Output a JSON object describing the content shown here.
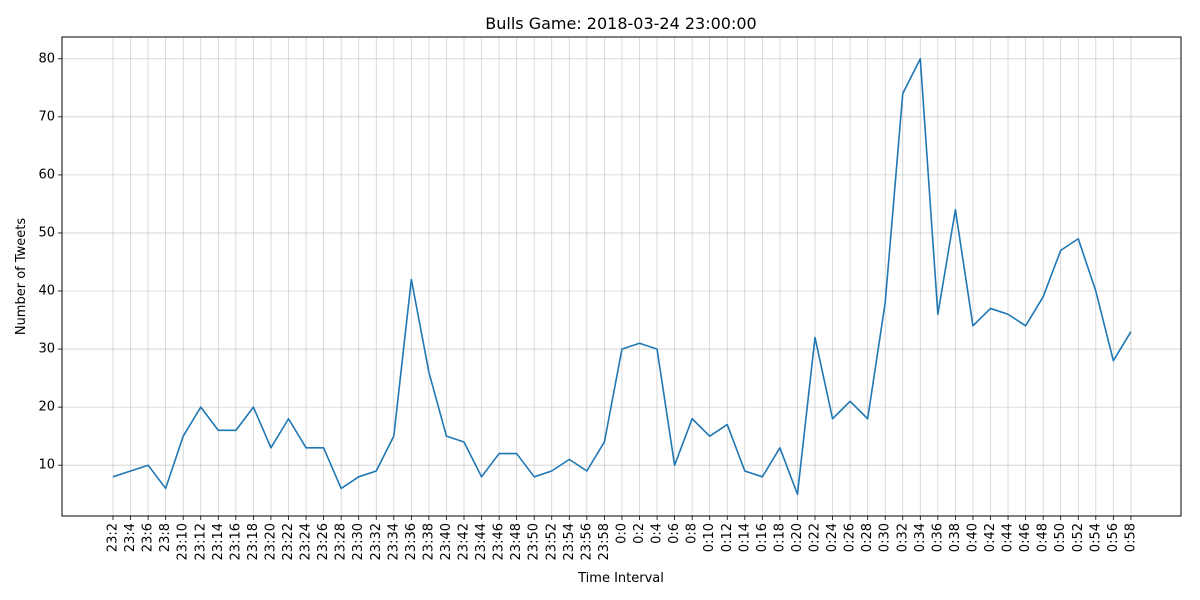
{
  "chart_data": {
    "type": "line",
    "title": "Bulls Game: 2018-03-24 23:00:00",
    "xlabel": "Time Interval",
    "ylabel": "Number of Tweets",
    "ylim": [
      1.25,
      83.75
    ],
    "yticks": [
      10,
      20,
      30,
      40,
      50,
      60,
      70,
      80
    ],
    "grid": true,
    "legend": "none",
    "color": "#1f77b4",
    "categories": [
      "23:2",
      "23:4",
      "23:6",
      "23:8",
      "23:10",
      "23:12",
      "23:14",
      "23:16",
      "23:18",
      "23:20",
      "23:22",
      "23:24",
      "23:26",
      "23:28",
      "23:30",
      "23:32",
      "23:34",
      "23:36",
      "23:38",
      "23:40",
      "23:42",
      "23:44",
      "23:46",
      "23:48",
      "23:50",
      "23:52",
      "23:54",
      "23:56",
      "23:58",
      "0:0",
      "0:2",
      "0:4",
      "0:6",
      "0:8",
      "0:10",
      "0:12",
      "0:14",
      "0:16",
      "0:18",
      "0:20",
      "0:22",
      "0:24",
      "0:26",
      "0:28",
      "0:30",
      "0:32",
      "0:34",
      "0:36",
      "0:38",
      "0:40",
      "0:42",
      "0:44",
      "0:46",
      "0:48",
      "0:50",
      "0:52",
      "0:54",
      "0:56",
      "0:58"
    ],
    "values": [
      8,
      9,
      10,
      6,
      15,
      20,
      16,
      16,
      20,
      13,
      18,
      13,
      13,
      6,
      8,
      9,
      15,
      42,
      26,
      15,
      14,
      8,
      12,
      12,
      8,
      9,
      11,
      9,
      14,
      30,
      31,
      30,
      10,
      18,
      15,
      17,
      9,
      8,
      13,
      5,
      32,
      18,
      21,
      18,
      38,
      74,
      80,
      36,
      54,
      34,
      37,
      36,
      34,
      39,
      47,
      49,
      40,
      28,
      33
    ]
  }
}
